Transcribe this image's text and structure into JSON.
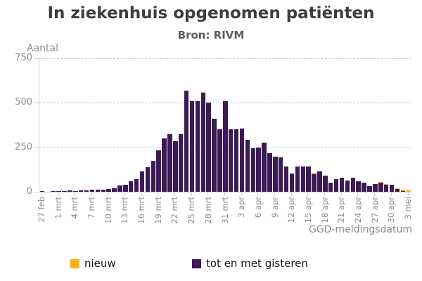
{
  "title": "In ziekenhuis opgenomen patiënten",
  "subtitle": "Bron: RIVM",
  "y_axis": {
    "label": "Aantal",
    "ticks": [
      0,
      250,
      500,
      750
    ]
  },
  "x_axis": {
    "label": "GGD-meldingsdatum"
  },
  "legend": [
    {
      "label": "nieuw",
      "color": "#fcb217"
    },
    {
      "label": "tot en met gisteren",
      "color": "#3b1a56"
    }
  ],
  "colors": {
    "bar_total": "#3b1a56",
    "bar_new": "#fcb217",
    "axis": "#c3d2e0",
    "gridline": "#b9cdde",
    "tick_text": "#8e8e8e",
    "title_text": "#3d3d3d"
  },
  "chart_data": {
    "type": "bar",
    "stacked": true,
    "title": "In ziekenhuis opgenomen patiënten",
    "subtitle": "Bron: RIVM",
    "xlabel": "GGD-meldingsdatum",
    "ylabel": "Aantal",
    "ylim": [
      0,
      750
    ],
    "grid": true,
    "legend_position": "bottom",
    "x_tick_every": 3,
    "x": [
      "27 feb",
      "28 feb",
      "29 feb",
      "1 mrt",
      "2 mrt",
      "3 mrt",
      "4 mrt",
      "5 mrt",
      "6 mrt",
      "7 mrt",
      "8 mrt",
      "9 mrt",
      "10 mrt",
      "11 mrt",
      "12 mrt",
      "13 mrt",
      "14 mrt",
      "15 mrt",
      "16 mrt",
      "17 mrt",
      "18 mrt",
      "19 mrt",
      "20 mrt",
      "21 mrt",
      "22 mrt",
      "23 mrt",
      "24 mrt",
      "25 mrt",
      "26 mrt",
      "27 mrt",
      "28 mrt",
      "29 mrt",
      "30 mrt",
      "31 mrt",
      "1 apr",
      "2 apr",
      "3 apr",
      "4 apr",
      "5 apr",
      "6 apr",
      "7 apr",
      "8 apr",
      "9 apr",
      "10 apr",
      "11 apr",
      "12 apr",
      "13 apr",
      "14 apr",
      "15 apr",
      "16 apr",
      "17 apr",
      "18 apr",
      "19 apr",
      "20 apr",
      "21 apr",
      "22 apr",
      "23 apr",
      "24 apr",
      "25 apr",
      "26 apr",
      "27 apr",
      "28 apr",
      "29 apr",
      "30 apr",
      "1 mei",
      "2 mei",
      "3 mei"
    ],
    "series": [
      {
        "name": "tot en met gisteren",
        "color": "#3b1a56",
        "values": [
          1,
          0,
          1,
          2,
          2,
          6,
          3,
          6,
          7,
          10,
          13,
          12,
          15,
          20,
          37,
          38,
          59,
          70,
          113,
          139,
          175,
          231,
          300,
          323,
          284,
          323,
          570,
          510,
          508,
          556,
          503,
          410,
          350,
          509,
          350,
          352,
          355,
          291,
          246,
          248,
          275,
          217,
          196,
          194,
          141,
          104,
          141,
          143,
          143,
          100,
          113,
          91,
          51,
          71,
          80,
          64,
          80,
          60,
          50,
          30,
          43,
          50,
          39,
          41,
          14,
          3,
          0
        ]
      },
      {
        "name": "nieuw",
        "color": "#fcb217",
        "values": [
          0,
          0,
          0,
          0,
          0,
          0,
          0,
          0,
          0,
          0,
          0,
          0,
          0,
          0,
          0,
          0,
          0,
          0,
          0,
          0,
          0,
          0,
          0,
          0,
          0,
          0,
          0,
          0,
          0,
          4,
          0,
          0,
          0,
          0,
          0,
          0,
          0,
          0,
          0,
          0,
          0,
          0,
          0,
          0,
          0,
          0,
          0,
          0,
          0,
          6,
          0,
          0,
          0,
          0,
          0,
          0,
          0,
          0,
          0,
          0,
          0,
          7,
          6,
          0,
          4,
          7,
          8
        ]
      }
    ]
  }
}
